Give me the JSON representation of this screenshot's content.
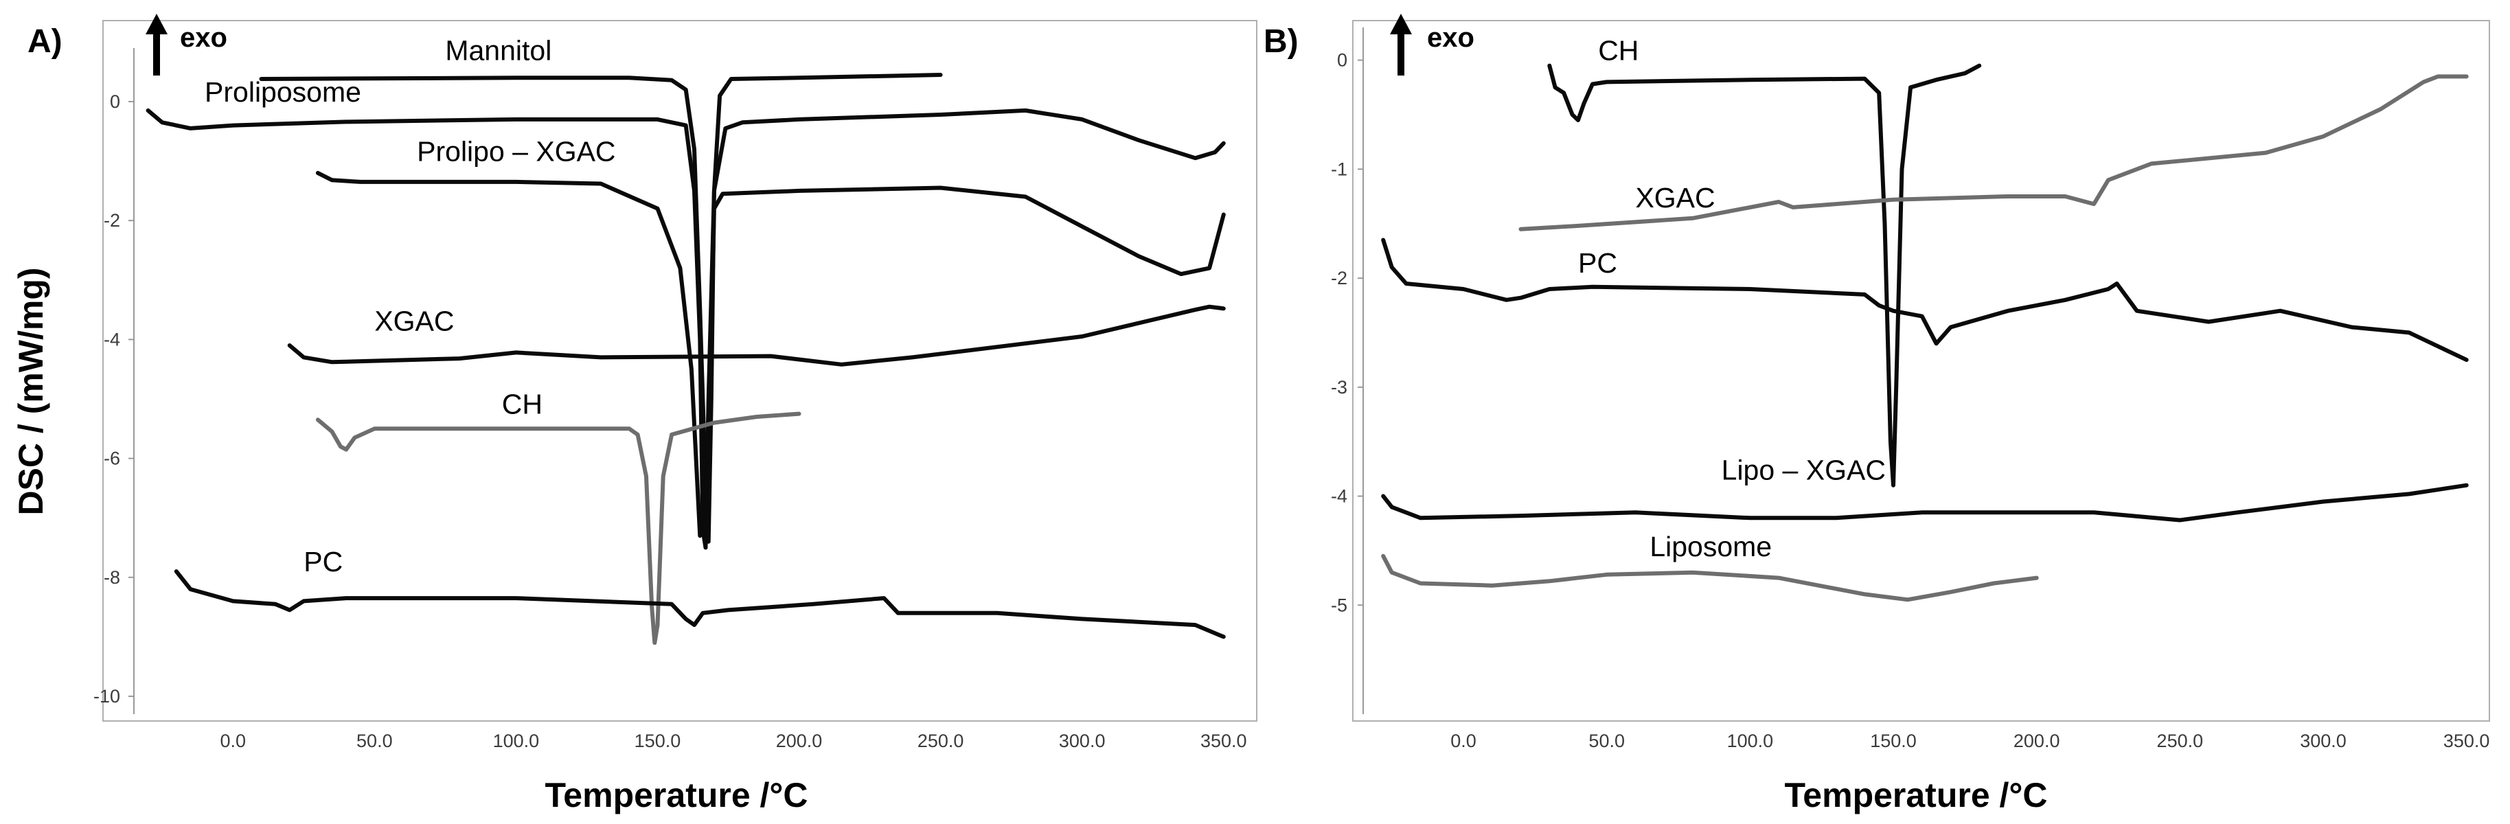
{
  "colors": {
    "black": "#0a0a0a",
    "gray": "#6e6e6e",
    "axis": "#999999"
  },
  "exo_icon": "up-arrow-icon",
  "chart_data": [
    {
      "type": "line",
      "panel_label": "A)",
      "exo_label": "exo",
      "title": "",
      "xlabel": "Temperature /°C",
      "ylabel": "DSC / (mW/mg)",
      "xlim": [
        -35,
        352
      ],
      "ylim": [
        -10.3,
        0.9
      ],
      "x_ticks": [
        0,
        50,
        100,
        150,
        200,
        250,
        300,
        350
      ],
      "x_tick_labels": [
        "0.0",
        "50.0",
        "100.0",
        "150.0",
        "200.0",
        "250.0",
        "300.0",
        "350.0"
      ],
      "y_ticks": [
        0,
        -2,
        -4,
        -6,
        -8,
        -10
      ],
      "y_tick_labels": [
        "0",
        "-2",
        "-4",
        "-6",
        "-8",
        "-10"
      ],
      "series": [
        {
          "name": "Mannitol",
          "color": "black",
          "label_at": [
            75,
            0.7
          ],
          "points": [
            [
              10,
              0.38
            ],
            [
              100,
              0.4
            ],
            [
              140,
              0.4
            ],
            [
              155,
              0.36
            ],
            [
              160,
              0.2
            ],
            [
              163,
              -0.8
            ],
            [
              165,
              -3.5
            ],
            [
              167,
              -6.5
            ],
            [
              168,
              -7.4
            ],
            [
              169,
              -5
            ],
            [
              170,
              -1.5
            ],
            [
              172,
              0.1
            ],
            [
              176,
              0.38
            ],
            [
              200,
              0.4
            ],
            [
              250,
              0.45
            ]
          ]
        },
        {
          "name": "Proliposome",
          "color": "black",
          "label_at": [
            -10,
            0.0
          ],
          "points": [
            [
              -30,
              -0.15
            ],
            [
              -25,
              -0.35
            ],
            [
              -15,
              -0.45
            ],
            [
              0,
              -0.4
            ],
            [
              40,
              -0.34
            ],
            [
              100,
              -0.3
            ],
            [
              150,
              -0.3
            ],
            [
              160,
              -0.4
            ],
            [
              163,
              -1.5
            ],
            [
              165,
              -4
            ],
            [
              166,
              -7.2
            ],
            [
              167,
              -7.5
            ],
            [
              168,
              -5
            ],
            [
              170,
              -1.5
            ],
            [
              174,
              -0.45
            ],
            [
              180,
              -0.35
            ],
            [
              200,
              -0.3
            ],
            [
              250,
              -0.22
            ],
            [
              280,
              -0.15
            ],
            [
              300,
              -0.3
            ],
            [
              320,
              -0.65
            ],
            [
              340,
              -0.95
            ],
            [
              347,
              -0.85
            ],
            [
              350,
              -0.7
            ]
          ]
        },
        {
          "name": "Prolipo – XGAC",
          "color": "black",
          "label_at": [
            65,
            -1.0
          ],
          "points": [
            [
              30,
              -1.2
            ],
            [
              35,
              -1.32
            ],
            [
              45,
              -1.35
            ],
            [
              100,
              -1.35
            ],
            [
              130,
              -1.38
            ],
            [
              150,
              -1.8
            ],
            [
              158,
              -2.8
            ],
            [
              162,
              -4.5
            ],
            [
              165,
              -7.3
            ],
            [
              167,
              -7.2
            ],
            [
              169,
              -4
            ],
            [
              170,
              -1.8
            ],
            [
              173,
              -1.55
            ],
            [
              200,
              -1.5
            ],
            [
              250,
              -1.45
            ],
            [
              280,
              -1.6
            ],
            [
              300,
              -2.1
            ],
            [
              320,
              -2.6
            ],
            [
              335,
              -2.9
            ],
            [
              345,
              -2.8
            ],
            [
              350,
              -1.9
            ]
          ]
        },
        {
          "name": "XGAC",
          "color": "black",
          "label_at": [
            50,
            -3.85
          ],
          "points": [
            [
              20,
              -4.1
            ],
            [
              25,
              -4.3
            ],
            [
              35,
              -4.38
            ],
            [
              80,
              -4.32
            ],
            [
              100,
              -4.22
            ],
            [
              130,
              -4.3
            ],
            [
              190,
              -4.28
            ],
            [
              215,
              -4.42
            ],
            [
              240,
              -4.3
            ],
            [
              300,
              -3.95
            ],
            [
              340,
              -3.5
            ],
            [
              345,
              -3.45
            ],
            [
              350,
              -3.48
            ]
          ]
        },
        {
          "name": "CH",
          "color": "gray",
          "label_at": [
            95,
            -5.25
          ],
          "points": [
            [
              30,
              -5.35
            ],
            [
              35,
              -5.55
            ],
            [
              38,
              -5.8
            ],
            [
              40,
              -5.85
            ],
            [
              43,
              -5.65
            ],
            [
              50,
              -5.5
            ],
            [
              100,
              -5.5
            ],
            [
              140,
              -5.5
            ],
            [
              143,
              -5.6
            ],
            [
              146,
              -6.3
            ],
            [
              148,
              -8.5
            ],
            [
              149,
              -9.1
            ],
            [
              150,
              -8.8
            ],
            [
              152,
              -6.3
            ],
            [
              155,
              -5.6
            ],
            [
              170,
              -5.4
            ],
            [
              185,
              -5.3
            ],
            [
              200,
              -5.25
            ]
          ]
        },
        {
          "name": "PC",
          "color": "black",
          "label_at": [
            25,
            -7.9
          ],
          "points": [
            [
              -20,
              -7.9
            ],
            [
              -15,
              -8.2
            ],
            [
              0,
              -8.4
            ],
            [
              15,
              -8.45
            ],
            [
              20,
              -8.55
            ],
            [
              25,
              -8.4
            ],
            [
              40,
              -8.35
            ],
            [
              100,
              -8.35
            ],
            [
              155,
              -8.45
            ],
            [
              160,
              -8.7
            ],
            [
              163,
              -8.8
            ],
            [
              166,
              -8.6
            ],
            [
              175,
              -8.55
            ],
            [
              190,
              -8.5
            ],
            [
              205,
              -8.45
            ],
            [
              230,
              -8.35
            ],
            [
              235,
              -8.6
            ],
            [
              270,
              -8.6
            ],
            [
              300,
              -8.7
            ],
            [
              340,
              -8.8
            ],
            [
              350,
              -9.0
            ]
          ]
        }
      ]
    },
    {
      "type": "line",
      "panel_label": "B)",
      "exo_label": "exo",
      "title": "",
      "xlabel": "Temperature /°C",
      "ylabel": "",
      "xlim": [
        -35,
        352
      ],
      "ylim": [
        -6.0,
        0.3
      ],
      "x_ticks": [
        0,
        50,
        100,
        150,
        200,
        250,
        300,
        350
      ],
      "x_tick_labels": [
        "0.0",
        "50.0",
        "100.0",
        "150.0",
        "200.0",
        "250.0",
        "300.0",
        "350.0"
      ],
      "y_ticks": [
        0,
        -1,
        -2,
        -3,
        -4,
        -5
      ],
      "y_tick_labels": [
        "0",
        "-1",
        "-2",
        "-3",
        "-4",
        "-5"
      ],
      "series": [
        {
          "name": "CH",
          "color": "black",
          "label_at": [
            47,
            0.0
          ],
          "points": [
            [
              30,
              -0.05
            ],
            [
              32,
              -0.25
            ],
            [
              35,
              -0.3
            ],
            [
              38,
              -0.5
            ],
            [
              40,
              -0.55
            ],
            [
              42,
              -0.4
            ],
            [
              45,
              -0.22
            ],
            [
              50,
              -0.2
            ],
            [
              100,
              -0.18
            ],
            [
              140,
              -0.17
            ],
            [
              145,
              -0.3
            ],
            [
              147,
              -1.5
            ],
            [
              149,
              -3.5
            ],
            [
              150,
              -3.9
            ],
            [
              151,
              -3.0
            ],
            [
              153,
              -1.0
            ],
            [
              156,
              -0.25
            ],
            [
              165,
              -0.18
            ],
            [
              175,
              -0.12
            ],
            [
              180,
              -0.05
            ]
          ]
        },
        {
          "name": "XGAC",
          "color": "gray",
          "label_at": [
            60,
            -1.35
          ],
          "points": [
            [
              20,
              -1.55
            ],
            [
              40,
              -1.52
            ],
            [
              80,
              -1.45
            ],
            [
              110,
              -1.3
            ],
            [
              115,
              -1.35
            ],
            [
              150,
              -1.28
            ],
            [
              190,
              -1.25
            ],
            [
              210,
              -1.25
            ],
            [
              220,
              -1.32
            ],
            [
              225,
              -1.1
            ],
            [
              240,
              -0.95
            ],
            [
              280,
              -0.85
            ],
            [
              300,
              -0.7
            ],
            [
              320,
              -0.45
            ],
            [
              335,
              -0.2
            ],
            [
              340,
              -0.15
            ],
            [
              350,
              -0.15
            ]
          ]
        },
        {
          "name": "PC",
          "color": "black",
          "label_at": [
            40,
            -1.95
          ],
          "points": [
            [
              -28,
              -1.65
            ],
            [
              -25,
              -1.9
            ],
            [
              -20,
              -2.05
            ],
            [
              0,
              -2.1
            ],
            [
              15,
              -2.2
            ],
            [
              20,
              -2.18
            ],
            [
              30,
              -2.1
            ],
            [
              45,
              -2.08
            ],
            [
              100,
              -2.1
            ],
            [
              140,
              -2.15
            ],
            [
              145,
              -2.25
            ],
            [
              150,
              -2.3
            ],
            [
              160,
              -2.35
            ],
            [
              165,
              -2.6
            ],
            [
              170,
              -2.45
            ],
            [
              190,
              -2.3
            ],
            [
              210,
              -2.2
            ],
            [
              225,
              -2.1
            ],
            [
              228,
              -2.05
            ],
            [
              235,
              -2.3
            ],
            [
              260,
              -2.4
            ],
            [
              285,
              -2.3
            ],
            [
              310,
              -2.45
            ],
            [
              330,
              -2.5
            ],
            [
              350,
              -2.75
            ]
          ]
        },
        {
          "name": "Lipo – XGAC",
          "color": "black",
          "label_at": [
            90,
            -3.85
          ],
          "points": [
            [
              -28,
              -4.0
            ],
            [
              -25,
              -4.1
            ],
            [
              -15,
              -4.2
            ],
            [
              20,
              -4.18
            ],
            [
              60,
              -4.15
            ],
            [
              100,
              -4.2
            ],
            [
              130,
              -4.2
            ],
            [
              160,
              -4.15
            ],
            [
              220,
              -4.15
            ],
            [
              250,
              -4.22
            ],
            [
              270,
              -4.15
            ],
            [
              300,
              -4.05
            ],
            [
              330,
              -3.98
            ],
            [
              350,
              -3.9
            ]
          ]
        },
        {
          "name": "Liposome",
          "color": "gray",
          "label_at": [
            65,
            -4.55
          ],
          "points": [
            [
              -28,
              -4.55
            ],
            [
              -25,
              -4.7
            ],
            [
              -15,
              -4.8
            ],
            [
              10,
              -4.82
            ],
            [
              30,
              -4.78
            ],
            [
              50,
              -4.72
            ],
            [
              80,
              -4.7
            ],
            [
              110,
              -4.75
            ],
            [
              140,
              -4.9
            ],
            [
              155,
              -4.95
            ],
            [
              170,
              -4.88
            ],
            [
              185,
              -4.8
            ],
            [
              200,
              -4.75
            ]
          ]
        }
      ]
    }
  ]
}
